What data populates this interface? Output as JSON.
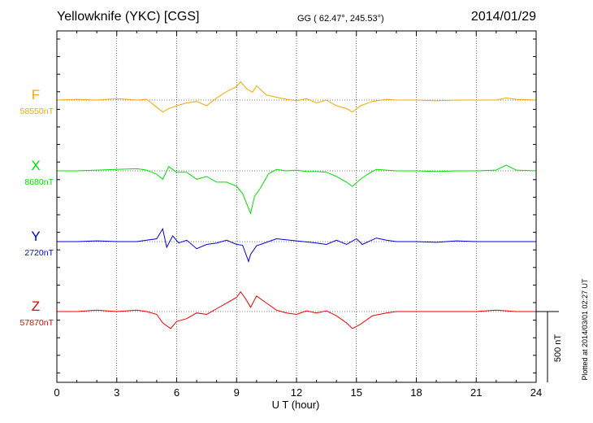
{
  "header": {
    "station": "Yellowknife (YKC)  [CGS]",
    "coords": "GG ( 62.47°, 245.53°)",
    "date": "2014/01/29"
  },
  "footer": {
    "plotted": "Plotted at 2014/03/01 02:27 UT"
  },
  "chart_data": {
    "type": "line",
    "xlabel": "U T (hour)",
    "xlim": [
      0,
      24
    ],
    "xticks": [
      0,
      3,
      6,
      9,
      12,
      15,
      18,
      21,
      24
    ],
    "scale_bar": "500 nT",
    "scale_bar_value_nT": 500,
    "series": [
      {
        "name": "F",
        "baseline_label": "58550nT",
        "color": "#f5a800",
        "x": [
          0,
          1,
          2,
          3,
          4,
          4.5,
          5,
          5.3,
          5.6,
          6,
          6.5,
          7,
          7.5,
          8,
          8.5,
          9,
          9.2,
          9.5,
          9.8,
          10,
          10.5,
          11,
          11.5,
          12,
          12.5,
          13,
          13.5,
          14,
          14.5,
          14.8,
          15.2,
          15.8,
          16.5,
          17,
          18,
          19,
          20,
          21,
          22,
          22.5,
          23,
          24
        ],
        "y": [
          0,
          5,
          0,
          10,
          0,
          5,
          -50,
          -85,
          -60,
          -40,
          -20,
          -10,
          -40,
          15,
          60,
          95,
          130,
          80,
          55,
          100,
          35,
          20,
          5,
          -5,
          10,
          -20,
          0,
          -40,
          -60,
          -85,
          -40,
          -10,
          5,
          0,
          0,
          -5,
          0,
          0,
          0,
          15,
          5,
          0
        ]
      },
      {
        "name": "X",
        "baseline_label": "8680nT",
        "color": "#00e000",
        "x": [
          0,
          1,
          2,
          3,
          4,
          4.5,
          5,
          5.3,
          5.6,
          6,
          6.5,
          7,
          7.5,
          8,
          8.5,
          9,
          9.3,
          9.6,
          9.7,
          9.9,
          10.2,
          10.6,
          11,
          11.5,
          12,
          12.5,
          13,
          13.5,
          14,
          14.5,
          14.8,
          15.2,
          15.6,
          16,
          17,
          18,
          19,
          20,
          21,
          22,
          22.5,
          23,
          24
        ],
        "y": [
          0,
          0,
          5,
          10,
          15,
          5,
          -25,
          -60,
          30,
          -10,
          -10,
          -60,
          -40,
          -80,
          -80,
          -110,
          -160,
          -265,
          -300,
          -180,
          -120,
          -20,
          10,
          0,
          5,
          -5,
          -5,
          -10,
          -40,
          -80,
          -110,
          -60,
          -20,
          10,
          0,
          0,
          -5,
          0,
          0,
          5,
          40,
          5,
          0
        ]
      },
      {
        "name": "Y",
        "baseline_label": "2720nT",
        "color": "#0000dd",
        "x": [
          0,
          1,
          2,
          3,
          4,
          4.5,
          5,
          5.3,
          5.5,
          5.8,
          6.1,
          6.5,
          7,
          7.5,
          8,
          8.5,
          9,
          9.3,
          9.6,
          9.7,
          10,
          10.5,
          11,
          12,
          13,
          13.5,
          14,
          14.5,
          15,
          15.3,
          16,
          16.5,
          17,
          18,
          19,
          20,
          21,
          22,
          23,
          24
        ],
        "y": [
          0,
          0,
          5,
          0,
          0,
          10,
          20,
          90,
          -40,
          40,
          -10,
          10,
          -50,
          -20,
          -10,
          10,
          -20,
          -25,
          -140,
          -90,
          -30,
          -5,
          20,
          5,
          -10,
          -20,
          10,
          -20,
          20,
          -20,
          25,
          10,
          0,
          0,
          -5,
          5,
          0,
          0,
          0,
          0
        ]
      },
      {
        "name": "Z",
        "baseline_label": "57870nT",
        "color": "#ee0000",
        "x": [
          0,
          1,
          2,
          3,
          4,
          4.5,
          5,
          5.3,
          5.7,
          6,
          6.5,
          7,
          7.5,
          8,
          8.5,
          9,
          9.2,
          9.5,
          9.7,
          10,
          10.5,
          11,
          11.5,
          12,
          12.5,
          13,
          13.5,
          14,
          14.5,
          14.8,
          15.2,
          15.8,
          16.5,
          17,
          18,
          19,
          20,
          21,
          22,
          22.5,
          23,
          24
        ],
        "y": [
          0,
          0,
          10,
          0,
          10,
          0,
          -20,
          -80,
          -120,
          -70,
          -50,
          -10,
          -20,
          20,
          60,
          100,
          140,
          80,
          30,
          110,
          60,
          10,
          -10,
          -20,
          5,
          -10,
          5,
          -30,
          -80,
          -120,
          -90,
          -30,
          -10,
          0,
          0,
          0,
          0,
          0,
          10,
          5,
          0,
          0
        ]
      }
    ]
  }
}
